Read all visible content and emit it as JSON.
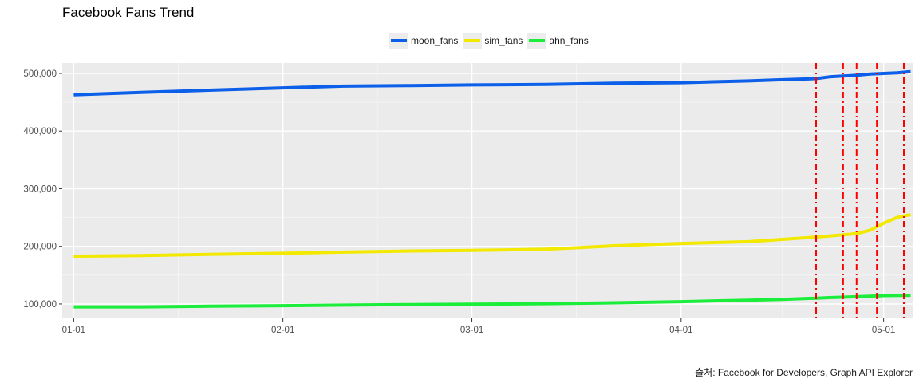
{
  "chart_data": {
    "type": "line",
    "title": "Facebook Fans Trend",
    "xlabel": "",
    "ylabel": "",
    "caption": "출처: Facebook for Developers, Graph API Explorer",
    "x_ticks": [
      "01-01",
      "02-01",
      "03-01",
      "04-01",
      "05-01"
    ],
    "y_ticks": [
      "100,000",
      "200,000",
      "300,000",
      "400,000",
      "500,000"
    ],
    "y_tick_values": [
      100000,
      200000,
      300000,
      400000,
      500000
    ],
    "x_range_days": [
      -1.7,
      124.3
    ],
    "ylim": [
      75000,
      518000
    ],
    "grid": true,
    "legend_position": "top",
    "background": "#ebebeb",
    "series": [
      {
        "name": "moon_fans",
        "color": "#0c5fe8",
        "x": [
          0,
          5,
          10,
          15,
          20,
          31,
          40,
          50,
          59,
          70,
          80,
          90,
          100,
          105,
          110,
          112,
          116,
          118,
          120,
          122,
          124
        ],
        "values": [
          463000,
          465000,
          467000,
          469000,
          471000,
          475000,
          478000,
          479000,
          480000,
          481000,
          483000,
          484000,
          487000,
          489000,
          491000,
          494000,
          497000,
          499000,
          500000,
          501000,
          503000
        ]
      },
      {
        "name": "sim_fans",
        "color": "#f2e800",
        "x": [
          0,
          10,
          20,
          31,
          40,
          50,
          59,
          70,
          75,
          80,
          90,
          100,
          105,
          110,
          112,
          114,
          116,
          118,
          120,
          122,
          124
        ],
        "values": [
          183000,
          184000,
          186000,
          188000,
          190000,
          192000,
          193000,
          195000,
          198000,
          201000,
          205000,
          208000,
          212000,
          216000,
          218000,
          220000,
          222000,
          228000,
          240000,
          250000,
          255000
        ]
      },
      {
        "name": "ahn_fans",
        "color": "#1aee3a",
        "x": [
          0,
          10,
          20,
          31,
          40,
          50,
          59,
          70,
          80,
          90,
          100,
          105,
          110,
          112,
          116,
          118,
          120,
          124
        ],
        "values": [
          95000,
          95000,
          96000,
          97000,
          98000,
          99000,
          99500,
          100500,
          102000,
          104000,
          106500,
          108000,
          110000,
          111000,
          112500,
          113500,
          114500,
          115000
        ]
      }
    ],
    "vlines": {
      "color": "#ff0000",
      "style": "dashdot",
      "x": [
        110,
        114,
        116,
        119,
        123
      ]
    }
  }
}
